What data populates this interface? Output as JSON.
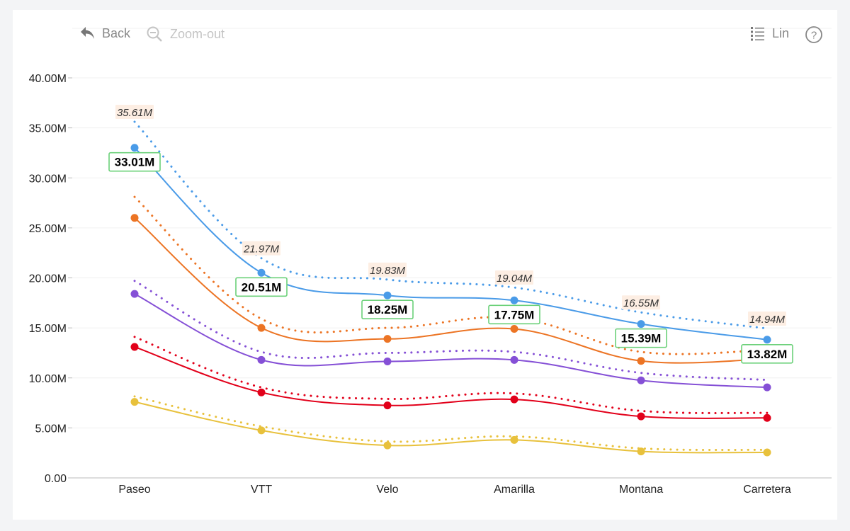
{
  "toolbar": {
    "back_label": "Back",
    "zoomout_label": "Zoom-out",
    "lin_label": "Lin",
    "help_label": "?"
  },
  "chart_data": {
    "type": "line",
    "title": "",
    "xlabel": "",
    "ylabel": "",
    "categories": [
      "Paseo",
      "VTT",
      "Velo",
      "Amarilla",
      "Montana",
      "Carretera"
    ],
    "ylim": [
      0,
      40000000
    ],
    "yticks": [
      0,
      5000000,
      10000000,
      15000000,
      20000000,
      25000000,
      30000000,
      35000000,
      40000000
    ],
    "ytick_labels": [
      "0.00",
      "5.00M",
      "10.00M",
      "15.00M",
      "20.00M",
      "25.00M",
      "30.00M",
      "35.00M",
      "40.00M"
    ],
    "grid": true,
    "legend": "none",
    "series": [
      {
        "color": "#4a9be8",
        "values": [
          33010000,
          20510000,
          18250000,
          17750000,
          15390000,
          13820000
        ],
        "value_labels": [
          "33.01M",
          "20.51M",
          "18.25M",
          "17.75M",
          "15.39M",
          "13.82M"
        ],
        "forecast": [
          35610000,
          21970000,
          19830000,
          19040000,
          16550000,
          14940000
        ],
        "forecast_labels": [
          "35.61M",
          "21.97M",
          "19.83M",
          "19.04M",
          "16.55M",
          "14.94M"
        ]
      },
      {
        "color": "#ec7424",
        "values": [
          26000000,
          15000000,
          13900000,
          14900000,
          11700000,
          11900000
        ],
        "forecast": [
          28100000,
          15900000,
          15000000,
          16000000,
          12600000,
          12800000
        ]
      },
      {
        "color": "#8550d6",
        "values": [
          18400000,
          11800000,
          11650000,
          11800000,
          9750000,
          9050000
        ],
        "forecast": [
          19700000,
          12600000,
          12500000,
          12600000,
          10500000,
          9800000
        ]
      },
      {
        "color": "#e2001a",
        "values": [
          13100000,
          8550000,
          7250000,
          7850000,
          6150000,
          6000000
        ],
        "forecast": [
          14100000,
          9050000,
          7900000,
          8450000,
          6700000,
          6500000
        ]
      },
      {
        "color": "#e8c13c",
        "values": [
          7600000,
          4750000,
          3250000,
          3800000,
          2650000,
          2550000
        ],
        "forecast": [
          8150000,
          5150000,
          3650000,
          4150000,
          2950000,
          2800000
        ]
      }
    ]
  }
}
